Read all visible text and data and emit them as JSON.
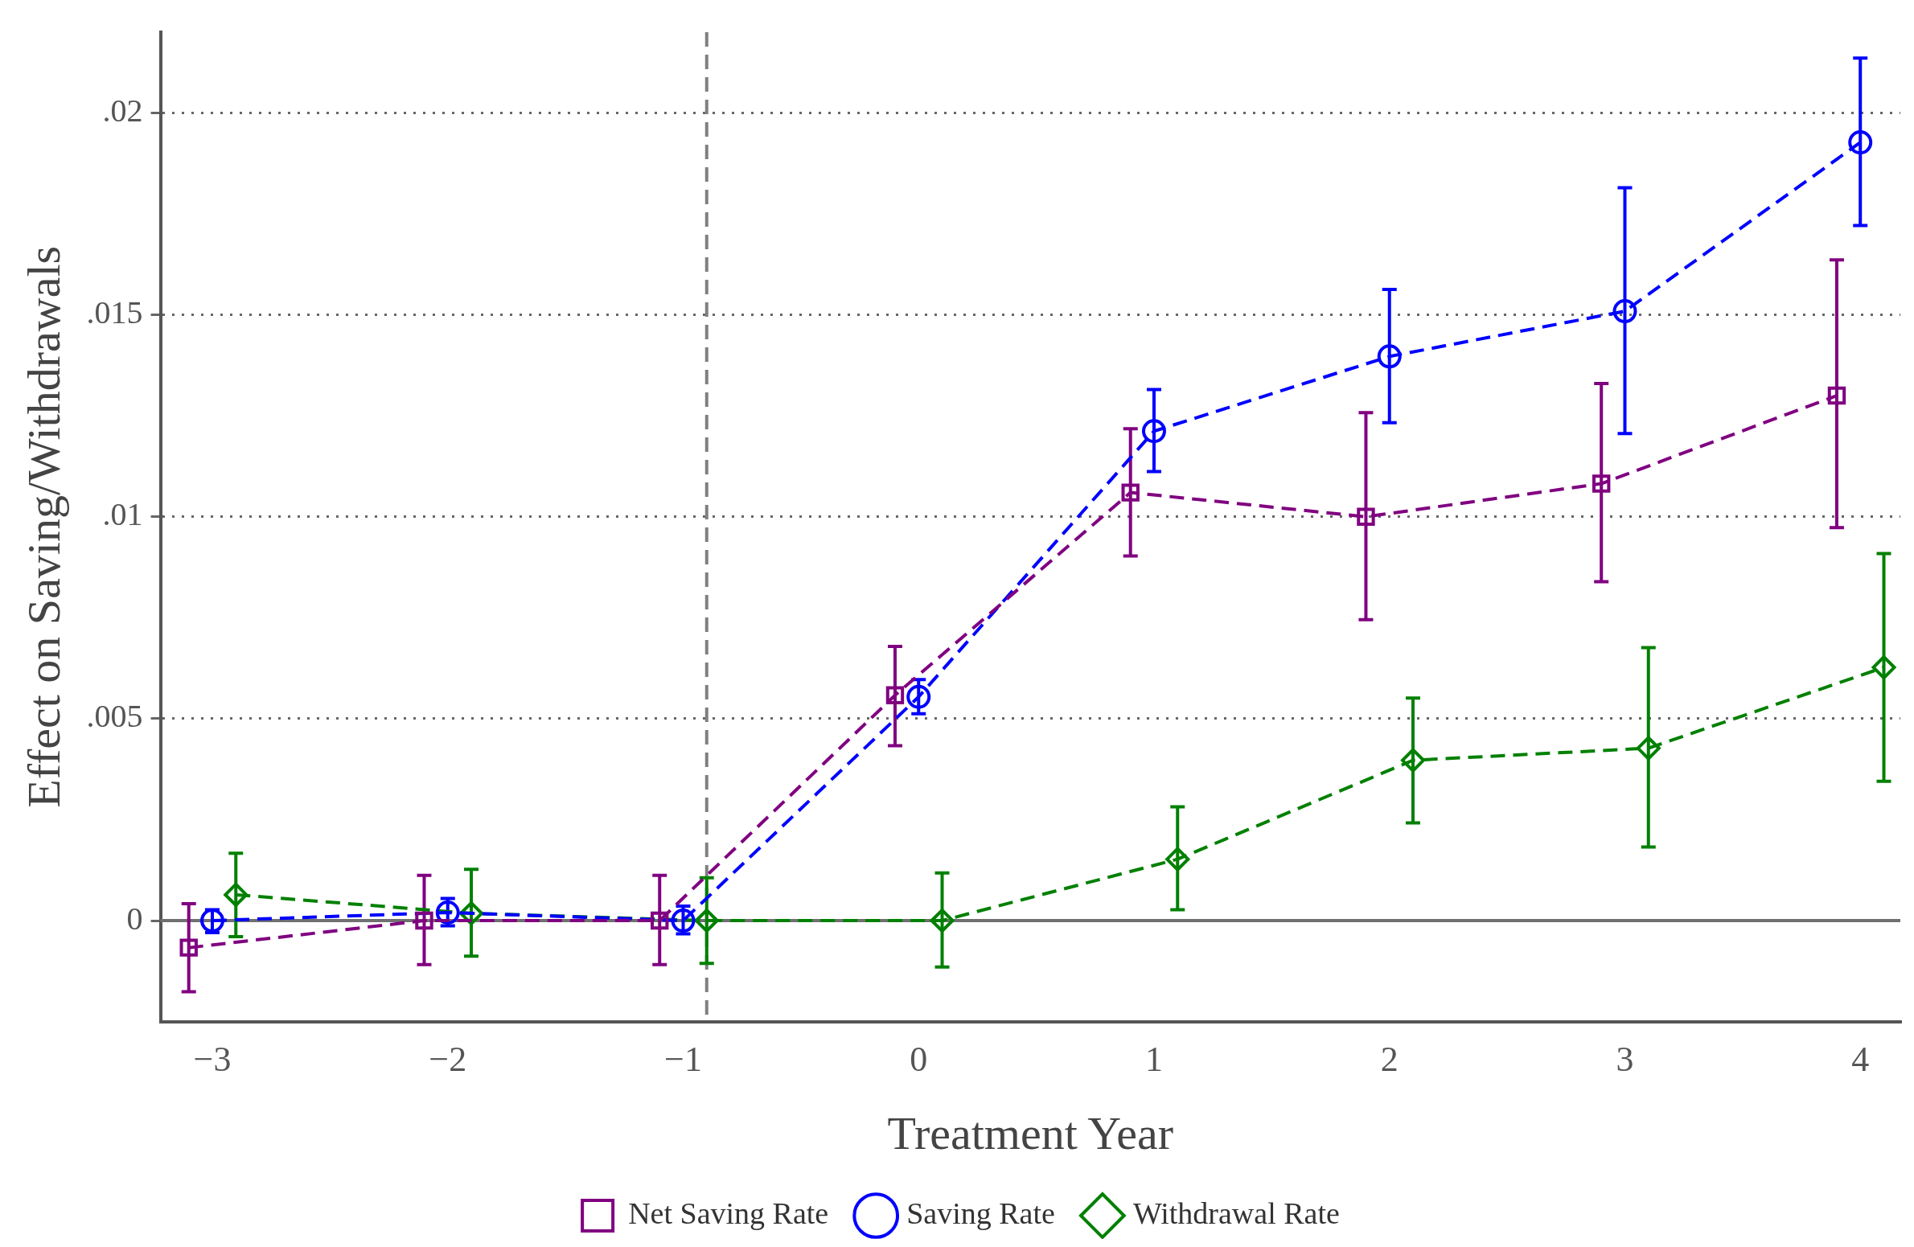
{
  "chart_data": {
    "type": "line",
    "xlabel": "Treatment Year",
    "ylabel": "Effect on Saving/Withdrawals",
    "xlim": [
      -3.22,
      4.17
    ],
    "ylim": [
      -0.0025,
      0.022
    ],
    "xticks": [
      {
        "value": -3,
        "label": "−3"
      },
      {
        "value": -2,
        "label": "−2"
      },
      {
        "value": -1,
        "label": "−1"
      },
      0,
      1,
      2,
      3,
      4
    ],
    "yticks": [
      0,
      {
        "value": 0.005,
        "label": ".005"
      },
      {
        "value": 0.01,
        "label": ".01"
      },
      {
        "value": 0.015,
        "label": ".015"
      },
      {
        "value": 0.02,
        "label": ".02"
      }
    ],
    "grid": "y",
    "legend": "bottom",
    "line_style": "dashed",
    "ref_lines": [
      {
        "axis": "x",
        "value": -0.9,
        "color": "#808080",
        "line_style": "dashed"
      },
      {
        "axis": "y",
        "value": 0,
        "color": "#707070",
        "line_style": "solid"
      }
    ],
    "series": [
      {
        "name": "Net Saving Rate",
        "color": "#800080",
        "marker": "square",
        "x": [
          -3.1,
          -2.1,
          -1.1,
          -0.1,
          0.9,
          1.9,
          2.9,
          3.9
        ],
        "values": [
          -0.00067,
          0,
          0,
          0.00558,
          0.0106,
          0.01,
          0.01082,
          0.013
        ],
        "errors": [
          [
            -0.00176,
            0.00042
          ],
          [
            -0.00109,
            0.00112
          ],
          [
            -0.00109,
            0.00112
          ],
          [
            0.00433,
            0.00679
          ],
          [
            0.00903,
            0.01218
          ],
          [
            0.00745,
            0.01258
          ],
          [
            0.00839,
            0.0133
          ],
          [
            0.00973,
            0.01636
          ]
        ]
      },
      {
        "name": "Saving Rate",
        "color": "#0000ff",
        "marker": "circle",
        "x": [
          -3,
          -2,
          -1,
          0,
          1,
          2,
          3,
          4
        ],
        "values": [
          0,
          0.0002,
          0,
          0.00554,
          0.01212,
          0.01397,
          0.01509,
          0.01927
        ],
        "errors": [
          [
            -0.0003,
            0.00027
          ],
          [
            -0.00013,
            0.00055
          ],
          [
            -0.00033,
            0.00036
          ],
          [
            0.00512,
            0.00597
          ],
          [
            0.01112,
            0.01315
          ],
          [
            0.01233,
            0.01563
          ],
          [
            0.01206,
            0.01815
          ],
          [
            0.01721,
            0.02136
          ]
        ]
      },
      {
        "name": "Withdrawal Rate",
        "color": "#008000",
        "marker": "diamond",
        "x": [
          -2.9,
          -1.9,
          -0.9,
          0.1,
          1.1,
          2.1,
          3.1,
          4.1
        ],
        "values": [
          0.00064,
          0.00018,
          0,
          0,
          0.00152,
          0.00397,
          0.00427,
          0.00627
        ],
        "errors": [
          [
            -0.0004,
            0.00167
          ],
          [
            -0.00088,
            0.00127
          ],
          [
            -0.00106,
            0.00106
          ],
          [
            -0.00115,
            0.00118
          ],
          [
            0.00027,
            0.00282
          ],
          [
            0.00242,
            0.00551
          ],
          [
            0.00182,
            0.00676
          ],
          [
            0.00345,
            0.00909
          ]
        ]
      }
    ]
  }
}
